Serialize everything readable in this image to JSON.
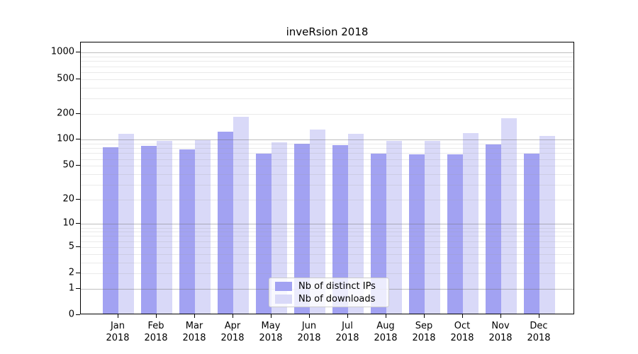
{
  "title": "inveRsion 2018",
  "chart_data": {
    "type": "bar",
    "title": "inveRsion 2018",
    "categories": [
      "Jan",
      "Feb",
      "Mar",
      "Apr",
      "May",
      "Jun",
      "Jul",
      "Aug",
      "Sep",
      "Oct",
      "Nov",
      "Dec"
    ],
    "x_tick_second_line": "2018",
    "series": [
      {
        "name": "Nb of distinct IPs",
        "color": "#a2a2f2",
        "values": [
          79,
          82,
          75,
          119,
          67,
          87,
          83,
          67,
          65,
          66,
          85,
          67
        ]
      },
      {
        "name": "Nb of downloads",
        "color": "#d9d9f8",
        "values": [
          112,
          94,
          96,
          178,
          91,
          126,
          112,
          94,
          93,
          116,
          170,
          107
        ]
      }
    ],
    "yscale": "log1p",
    "yticks": [
      0,
      1,
      2,
      5,
      10,
      20,
      50,
      100,
      200,
      500,
      1000
    ],
    "ylim": [
      0,
      1300
    ],
    "grid": "on",
    "legend": {
      "position": "lower-center",
      "entries": [
        "Nb of distinct IPs",
        "Nb of downloads"
      ]
    }
  },
  "colors": {
    "background": "#ffffff",
    "spine": "#000000",
    "grid_major": "#b0b0b0",
    "grid_minor": "#e6e6e6",
    "text": "#000000"
  }
}
